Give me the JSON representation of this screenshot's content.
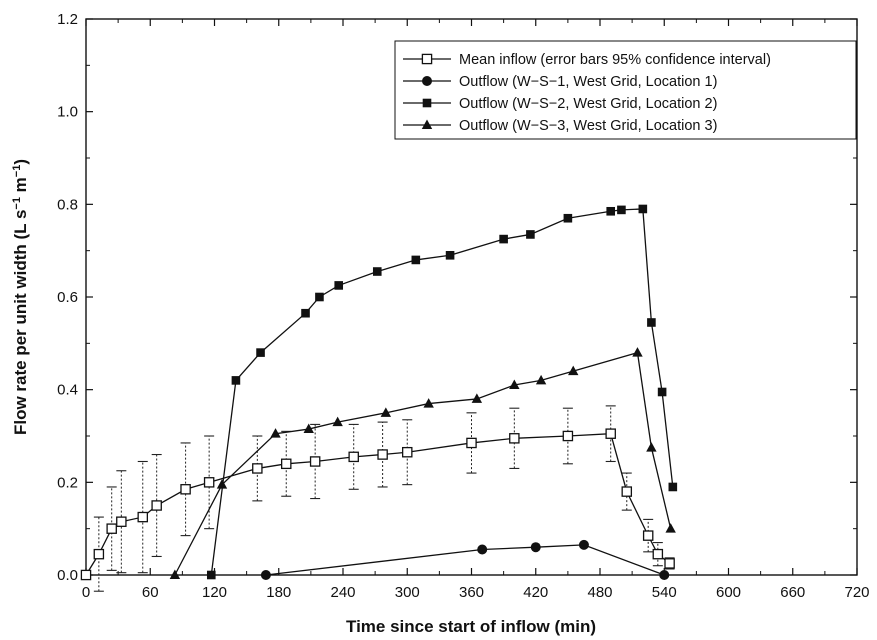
{
  "chart_data": {
    "type": "line",
    "title": "",
    "xlabel": "Time since start of inflow (min)",
    "ylabel": "Flow rate per unit width (L s",
    "ylabel_unit_1": "−1",
    "ylabel_unit_mid": " m",
    "ylabel_unit_2": "−1",
    "ylabel_unit_end": ")",
    "xlim": [
      0,
      720
    ],
    "ylim": [
      0,
      1.2
    ],
    "x_ticks": [
      0,
      60,
      120,
      180,
      240,
      300,
      360,
      420,
      480,
      540,
      600,
      660,
      720
    ],
    "y_ticks": [
      "0.0",
      "0.2",
      "0.4",
      "0.6",
      "0.8",
      "1.0",
      "1.2"
    ],
    "y_tick_values": [
      0,
      0.2,
      0.4,
      0.6,
      0.8,
      1.0,
      1.2
    ],
    "grid": false,
    "legend_position": "top-right",
    "series": [
      {
        "name": "Mean inflow (error bars 95% confidence interval)",
        "marker": "open-square",
        "x": [
          0,
          12,
          24,
          33,
          53,
          66,
          93,
          115,
          160,
          187,
          214,
          250,
          277,
          300,
          360,
          400,
          450,
          490,
          505,
          525,
          534,
          545
        ],
        "y": [
          0,
          0.045,
          0.1,
          0.115,
          0.125,
          0.15,
          0.185,
          0.2,
          0.23,
          0.24,
          0.245,
          0.255,
          0.26,
          0.265,
          0.285,
          0.295,
          0.3,
          0.305,
          0.18,
          0.085,
          0.045,
          0.025
        ],
        "err": [
          0,
          0.08,
          0.09,
          0.11,
          0.12,
          0.11,
          0.1,
          0.1,
          0.07,
          0.07,
          0.08,
          0.07,
          0.07,
          0.07,
          0.065,
          0.065,
          0.06,
          0.06,
          0.04,
          0.035,
          0.025,
          0.012
        ]
      },
      {
        "name": "Outflow (W−S−1, West Grid, Location 1)",
        "marker": "filled-circle",
        "x": [
          168,
          370,
          420,
          465,
          540
        ],
        "y": [
          0,
          0.055,
          0.06,
          0.065,
          0
        ]
      },
      {
        "name": "Outflow (W−S−2, West Grid, Location 2)",
        "marker": "filled-square",
        "x": [
          117,
          140,
          163,
          205,
          218,
          236,
          272,
          308,
          340,
          390,
          415,
          450,
          490,
          500,
          520,
          528,
          538,
          548
        ],
        "y": [
          0,
          0.42,
          0.48,
          0.565,
          0.6,
          0.625,
          0.655,
          0.68,
          0.69,
          0.725,
          0.735,
          0.77,
          0.785,
          0.788,
          0.79,
          0.545,
          0.395,
          0.19
        ]
      },
      {
        "name": "Outflow (W−S−3, West Grid, Location 3)",
        "marker": "filled-triangle",
        "x": [
          83,
          127,
          177,
          208,
          235,
          280,
          320,
          365,
          400,
          425,
          455,
          515,
          528,
          546
        ],
        "y": [
          0,
          0.195,
          0.305,
          0.315,
          0.33,
          0.35,
          0.37,
          0.38,
          0.41,
          0.42,
          0.44,
          0.48,
          0.275,
          0.1
        ]
      }
    ]
  }
}
